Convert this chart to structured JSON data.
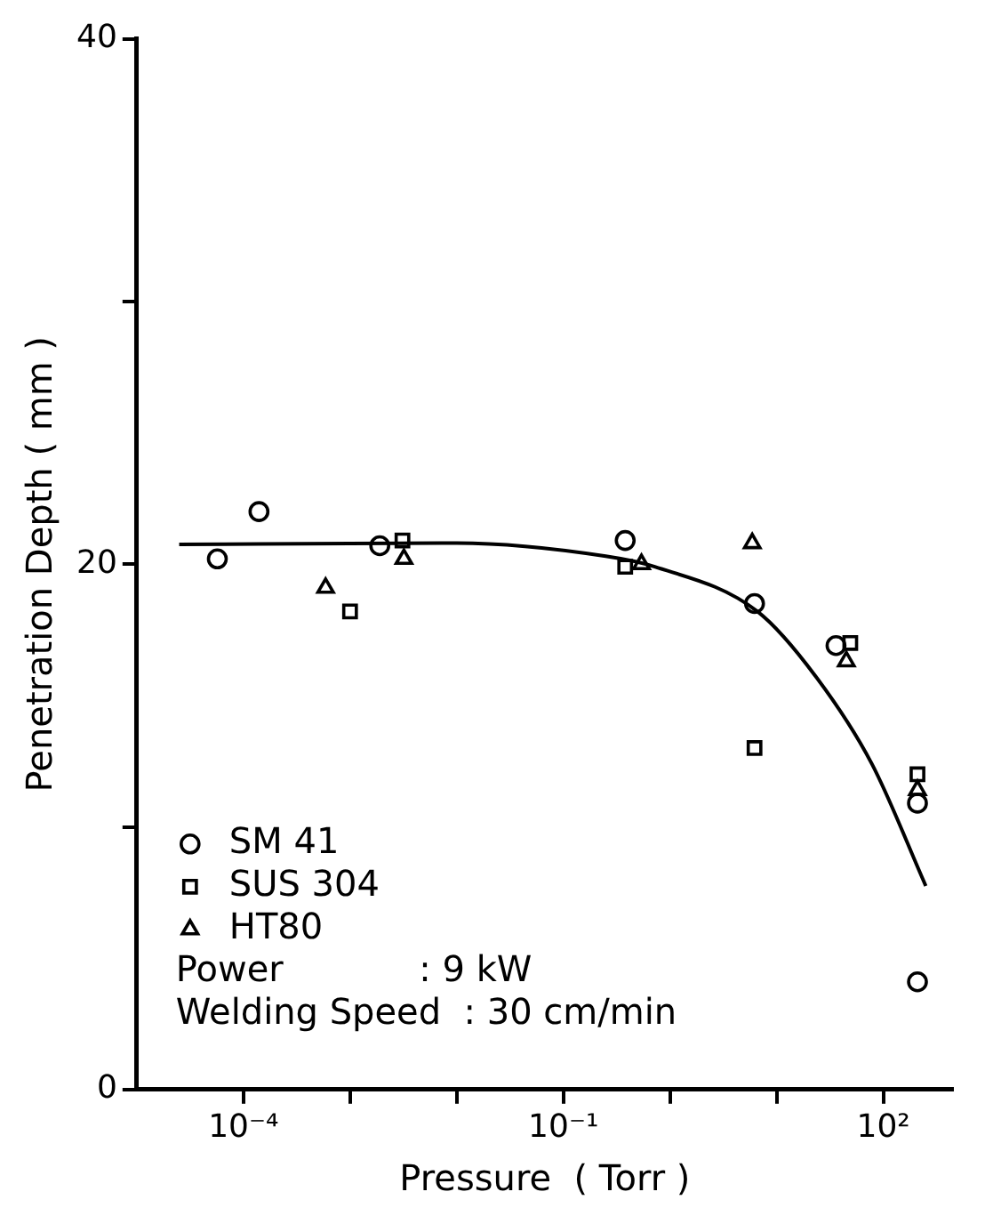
{
  "chart_data": {
    "type": "scatter",
    "xlabel": "Pressure  ( Torr )",
    "ylabel": "Penetration Depth ( mm )",
    "log": "x",
    "xlim": [
      1e-05,
      450
    ],
    "xticks": [
      {
        "value": 0.0001,
        "label": "10⁻⁴"
      },
      {
        "value": 0.001,
        "label": null
      },
      {
        "value": 0.01,
        "label": null
      },
      {
        "value": 0.1,
        "label": "10⁻¹"
      },
      {
        "value": 1,
        "label": null
      },
      {
        "value": 10,
        "label": null
      },
      {
        "value": 100,
        "label": "10²"
      }
    ],
    "ylim": [
      0,
      40
    ],
    "yticks": [
      0,
      {
        "value": 10,
        "label": null
      },
      20,
      {
        "value": 30,
        "label": null
      },
      40
    ],
    "grid": false,
    "legend": "bottom left",
    "series": [
      {
        "name": "SM 41",
        "color": "#000000",
        "marker": "circle",
        "x": [
          5.7e-05,
          0.00014,
          0.0019,
          0.38,
          6.2,
          36,
          209,
          209
        ],
        "values": [
          20.2,
          22.0,
          20.7,
          20.9,
          18.5,
          16.9,
          10.9,
          4.1
        ]
      },
      {
        "name": "SUS 304",
        "color": "#000000",
        "marker": "square",
        "x": [
          0.001,
          0.0031,
          0.38,
          6.2,
          49,
          209
        ],
        "values": [
          18.2,
          20.9,
          19.9,
          13.0,
          17.0,
          12.0
        ]
      },
      {
        "name": "HT80",
        "color": "#000000",
        "marker": "triangle",
        "x": [
          0.00059,
          0.0032,
          0.54,
          5.9,
          45,
          209
        ],
        "values": [
          19.1,
          20.2,
          20.0,
          20.8,
          16.3,
          11.4
        ]
      },
      {
        "type": "line",
        "color": "#000000",
        "marker": "none",
        "x": [
          2.5e-05,
          0.01,
          0.25,
          0.72,
          6.6,
          23,
          78,
          250
        ],
        "values": [
          20.75,
          20.8,
          20.3,
          19.9,
          18.2,
          15.75,
          12.4,
          7.75
        ]
      }
    ],
    "annotations": [
      "Power            : 9 kW",
      "Welding Speed  : 30 cm/min"
    ]
  }
}
